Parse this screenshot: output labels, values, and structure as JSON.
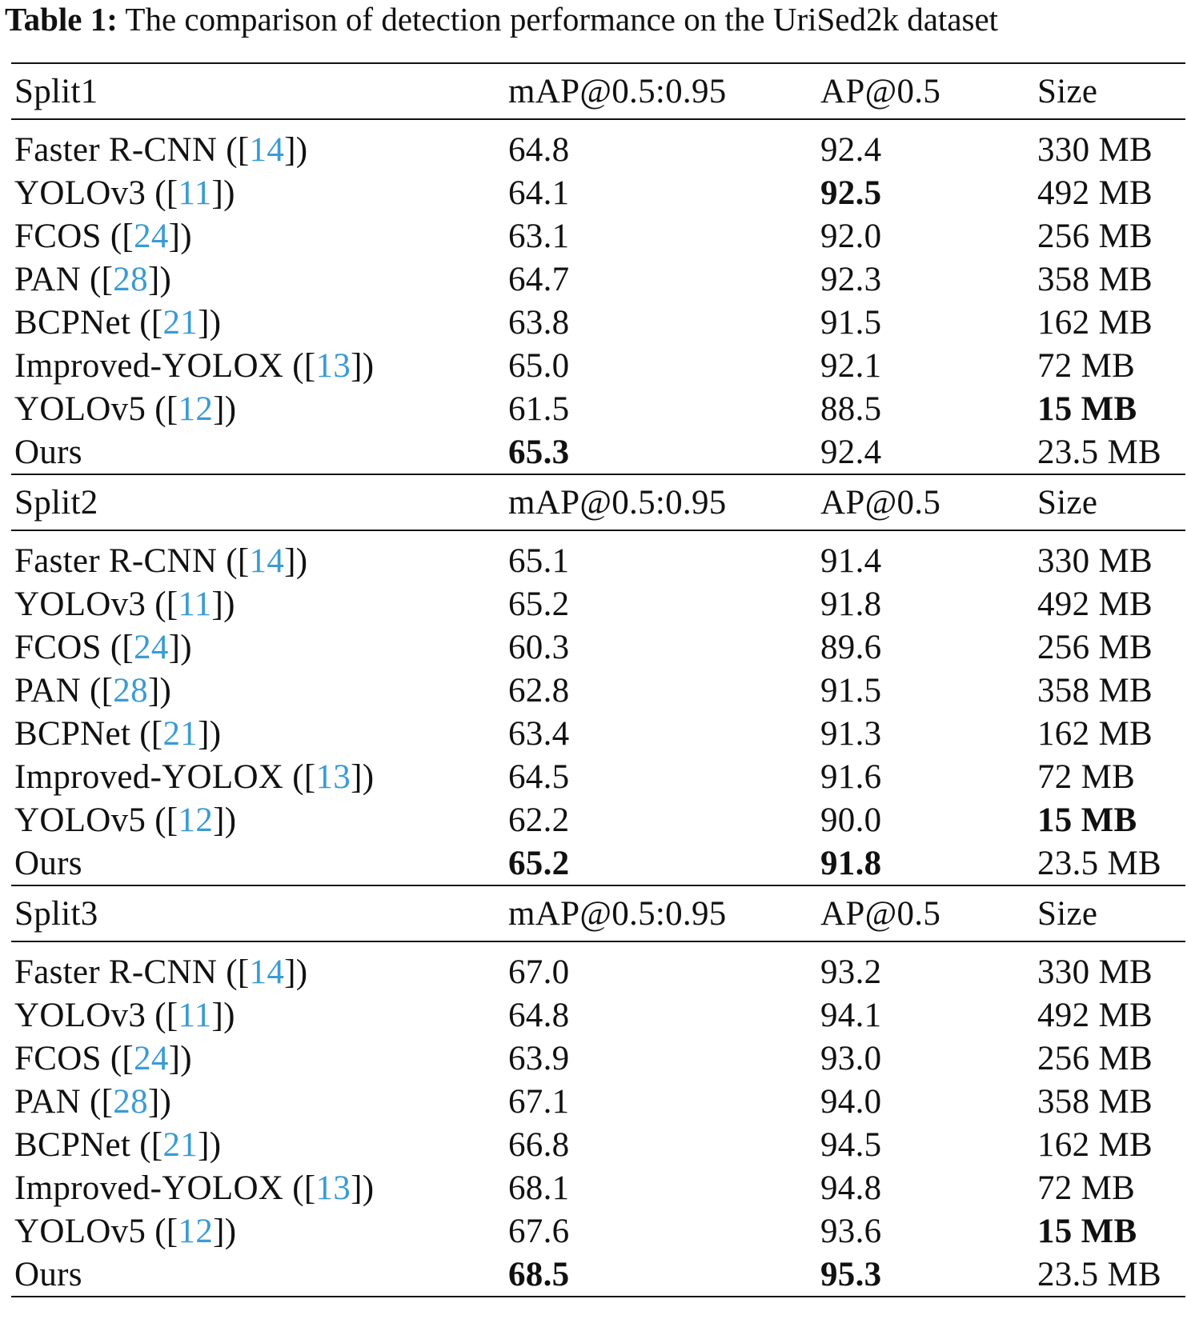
{
  "caption": {
    "label": "Table 1:",
    "text": "The comparison of detection performance on the UriSed2k dataset"
  },
  "columns": [
    "mAP@0.5:0.95",
    "AP@0.5",
    "Size"
  ],
  "sections": [
    {
      "name": "Split1",
      "rows": [
        {
          "method": "Faster R-CNN",
          "ref": "14",
          "map": "64.8",
          "ap": "92.4",
          "size": "330 MB"
        },
        {
          "method": "YOLOv3",
          "ref": "11",
          "map": "64.1",
          "ap": "92.5",
          "size": "492 MB"
        },
        {
          "method": "FCOS",
          "ref": "24",
          "map": "63.1",
          "ap": "92.0",
          "size": "256 MB"
        },
        {
          "method": "PAN",
          "ref": "28",
          "map": "64.7",
          "ap": "92.3",
          "size": "358 MB"
        },
        {
          "method": "BCPNet",
          "ref": "21",
          "map": "63.8",
          "ap": "91.5",
          "size": "162 MB"
        },
        {
          "method": "Improved-YOLOX",
          "ref": "13",
          "map": "65.0",
          "ap": "92.1",
          "size": "72 MB"
        },
        {
          "method": "YOLOv5",
          "ref": "12",
          "map": "61.5",
          "ap": "88.5",
          "size": "15 MB"
        },
        {
          "method": "Ours",
          "ref": "",
          "map": "65.3",
          "ap": "92.4",
          "size": "23.5 MB"
        }
      ],
      "bold": {
        "map": 7,
        "ap": 1,
        "size": 6
      }
    },
    {
      "name": "Split2",
      "rows": [
        {
          "method": "Faster R-CNN",
          "ref": "14",
          "map": "65.1",
          "ap": "91.4",
          "size": "330 MB"
        },
        {
          "method": "YOLOv3",
          "ref": "11",
          "map": "65.2",
          "ap": "91.8",
          "size": "492 MB"
        },
        {
          "method": "FCOS",
          "ref": "24",
          "map": "60.3",
          "ap": "89.6",
          "size": "256 MB"
        },
        {
          "method": "PAN",
          "ref": "28",
          "map": "62.8",
          "ap": "91.5",
          "size": "358 MB"
        },
        {
          "method": "BCPNet",
          "ref": "21",
          "map": "63.4",
          "ap": "91.3",
          "size": "162 MB"
        },
        {
          "method": "Improved-YOLOX",
          "ref": "13",
          "map": "64.5",
          "ap": "91.6",
          "size": "72 MB"
        },
        {
          "method": "YOLOv5",
          "ref": "12",
          "map": "62.2",
          "ap": "90.0",
          "size": "15 MB"
        },
        {
          "method": "Ours",
          "ref": "",
          "map": "65.2",
          "ap": "91.8",
          "size": "23.5 MB"
        }
      ],
      "bold": {
        "map": 7,
        "ap": 7,
        "size": 6
      }
    },
    {
      "name": "Split3",
      "rows": [
        {
          "method": "Faster R-CNN",
          "ref": "14",
          "map": "67.0",
          "ap": "93.2",
          "size": "330 MB"
        },
        {
          "method": "YOLOv3",
          "ref": "11",
          "map": "64.8",
          "ap": "94.1",
          "size": "492 MB"
        },
        {
          "method": "FCOS",
          "ref": "24",
          "map": "63.9",
          "ap": "93.0",
          "size": "256 MB"
        },
        {
          "method": "PAN",
          "ref": "28",
          "map": "67.1",
          "ap": "94.0",
          "size": "358 MB"
        },
        {
          "method": "BCPNet",
          "ref": "21",
          "map": "66.8",
          "ap": "94.5",
          "size": "162 MB"
        },
        {
          "method": "Improved-YOLOX",
          "ref": "13",
          "map": "68.1",
          "ap": "94.8",
          "size": "72 MB"
        },
        {
          "method": "YOLOv5",
          "ref": "12",
          "map": "67.6",
          "ap": "93.6",
          "size": "15 MB"
        },
        {
          "method": "Ours",
          "ref": "",
          "map": "68.5",
          "ap": "95.3",
          "size": "23.5 MB"
        }
      ],
      "bold": {
        "map": 7,
        "ap": 7,
        "size": 6
      }
    }
  ]
}
